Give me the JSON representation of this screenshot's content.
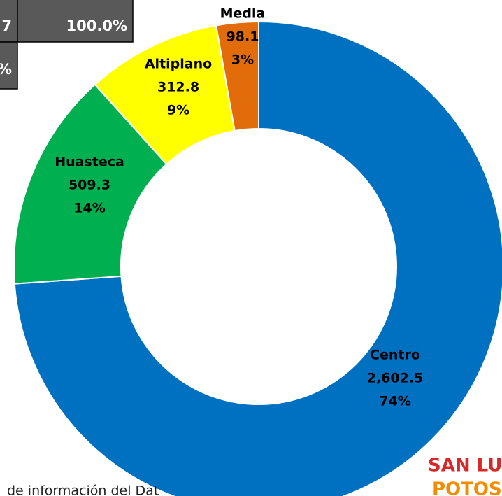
{
  "chart_data": {
    "type": "donut",
    "categories": [
      "Centro",
      "Huasteca",
      "Altiplano",
      "Media"
    ],
    "values": [
      2602.5,
      509.3,
      312.8,
      98.1
    ],
    "value_labels": [
      "2,602.5",
      "509.3",
      "312.8",
      "98.1"
    ],
    "percent_labels": [
      "74%",
      "14%",
      "9%",
      "3%"
    ],
    "colors": [
      "#0070c0",
      "#00b050",
      "#ffff00",
      "#e36c0a"
    ]
  },
  "table": {
    "rows": [
      [
        "7",
        "100.0%"
      ],
      [
        "%"
      ]
    ]
  },
  "footer": {
    "source": "de información del Dat"
  },
  "logo": {
    "line1": "SAN LUIS",
    "line2": "POTOSÍ"
  }
}
